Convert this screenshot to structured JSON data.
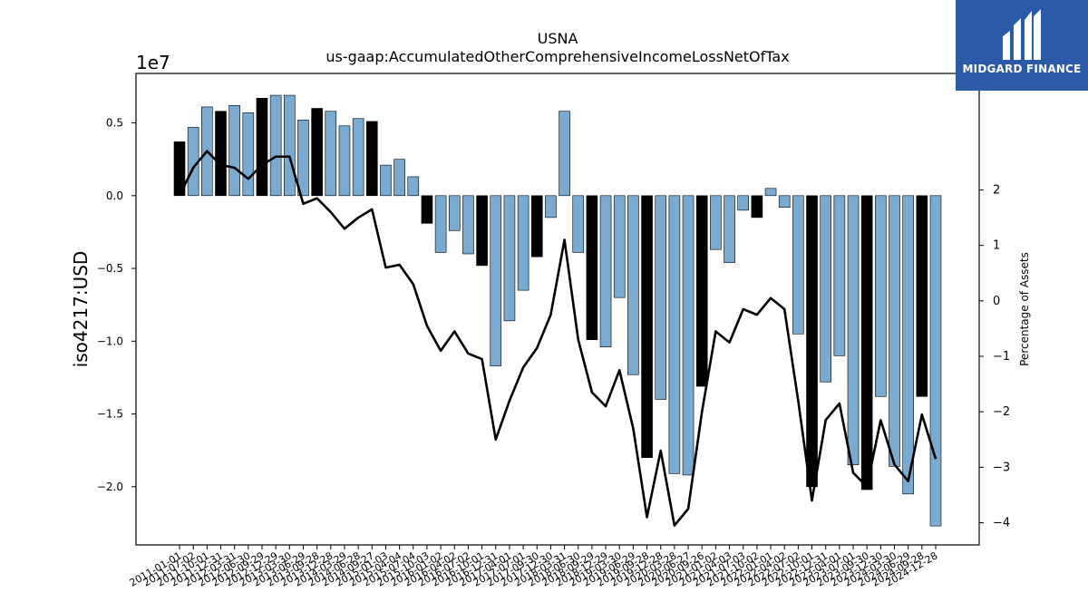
{
  "chart_data": {
    "type": "bar",
    "title": "USNA",
    "subtitle": "us-gaap:AccumulatedOtherComprehensiveIncomeLossNetOfTax",
    "ylabel": "iso4217:USD",
    "y2label": "Percentage of Assets",
    "exponent_label": "1e7",
    "ylim": [
      -24000000,
      8400000
    ],
    "y2lim": [
      -4.4,
      4.1
    ],
    "yticks": [
      {
        "v": 5000000,
        "label": "0.5"
      },
      {
        "v": 0,
        "label": "0.0"
      },
      {
        "v": -5000000,
        "label": "−0.5"
      },
      {
        "v": -10000000,
        "label": "−1.0"
      },
      {
        "v": -15000000,
        "label": "−1.5"
      },
      {
        "v": -20000000,
        "label": "−2.0"
      }
    ],
    "y2ticks": [
      {
        "v": 2,
        "label": "2"
      },
      {
        "v": 1,
        "label": "1"
      },
      {
        "v": 0,
        "label": "0"
      },
      {
        "v": -1,
        "label": "−1"
      },
      {
        "v": -2,
        "label": "−2"
      },
      {
        "v": -3,
        "label": "−3"
      },
      {
        "v": -4,
        "label": "−4"
      }
    ],
    "colors": {
      "annual": "#000000",
      "quarterly": "#7aaad0",
      "line": "#000000"
    },
    "categories": [
      "2011-01-01",
      "2011-07-02",
      "2011-10-01",
      "2011-12-31",
      "2012-03-31",
      "2012-06-30",
      "2012-09-29",
      "2012-12-29",
      "2013-03-30",
      "2013-06-29",
      "2013-09-28",
      "2013-12-28",
      "2014-03-29",
      "2014-06-28",
      "2014-09-27",
      "2015-01-03",
      "2015-04-04",
      "2015-07-04",
      "2015-10-03",
      "2016-01-02",
      "2016-04-02",
      "2016-07-02",
      "2016-10-01",
      "2016-12-31",
      "2017-04-01",
      "2017-07-01",
      "2017-09-30",
      "2017-12-30",
      "2018-03-31",
      "2018-06-30",
      "2018-09-29",
      "2018-12-29",
      "2019-03-30",
      "2019-06-29",
      "2019-09-28",
      "2019-12-28",
      "2020-03-28",
      "2020-06-27",
      "2020-09-26",
      "2021-01-02",
      "2021-04-03",
      "2021-07-03",
      "2021-10-02",
      "2022-01-01",
      "2022-04-02",
      "2022-07-02",
      "2022-10-01",
      "2022-12-31",
      "2023-04-01",
      "2023-07-01",
      "2023-09-30",
      "2023-12-30",
      "2024-03-30",
      "2024-06-29",
      "2024-09-28",
      "2024-12-28"
    ],
    "values": [
      3700000,
      4700000,
      6100000,
      5800000,
      6200000,
      5700000,
      6700000,
      6900000,
      6900000,
      5200000,
      6000000,
      5800000,
      4800000,
      5300000,
      5100000,
      2100000,
      2500000,
      1300000,
      -1900000,
      -3900000,
      -2400000,
      -4000000,
      -4800000,
      -11700000,
      -8600000,
      -6500000,
      -4200000,
      -1500000,
      5800000,
      -3900000,
      -9900000,
      -10400000,
      -7000000,
      -12300000,
      -18000000,
      -14000000,
      -19100000,
      -19200000,
      -13100000,
      -3700000,
      -4600000,
      -1000000,
      -1500000,
      500000,
      -800000,
      -9500000,
      -20000000,
      -12800000,
      -11000000,
      -18500000,
      -20200000,
      -13800000,
      -18600000,
      -20500000,
      -13800000,
      -22700000
    ],
    "annual_flags": [
      true,
      false,
      false,
      true,
      false,
      false,
      true,
      false,
      false,
      false,
      true,
      false,
      false,
      false,
      true,
      false,
      false,
      false,
      true,
      false,
      false,
      false,
      true,
      false,
      false,
      false,
      true,
      false,
      false,
      false,
      true,
      false,
      false,
      false,
      true,
      false,
      false,
      false,
      true,
      false,
      false,
      false,
      true,
      false,
      false,
      false,
      true,
      false,
      false,
      false,
      true,
      false,
      false,
      false,
      true,
      false
    ],
    "pct_assets": [
      1.9,
      2.4,
      2.7,
      2.45,
      2.4,
      2.2,
      2.45,
      2.6,
      2.6,
      1.75,
      1.85,
      1.6,
      1.3,
      1.5,
      1.65,
      0.6,
      0.65,
      0.3,
      -0.45,
      -0.9,
      -0.55,
      -0.95,
      -1.05,
      -2.5,
      -1.8,
      -1.2,
      -0.85,
      -0.25,
      1.1,
      -0.7,
      -1.65,
      -1.9,
      -1.25,
      -2.3,
      -3.9,
      -2.7,
      -4.05,
      -3.75,
      -2.0,
      -0.55,
      -0.75,
      -0.15,
      -0.25,
      0.05,
      -0.15,
      -1.8,
      -3.6,
      -2.15,
      -1.85,
      -3.1,
      -3.35,
      -2.15,
      -2.95,
      -3.25,
      -2.05,
      -2.85
    ]
  },
  "logo": {
    "text": "MIDGARD FINANCE"
  }
}
